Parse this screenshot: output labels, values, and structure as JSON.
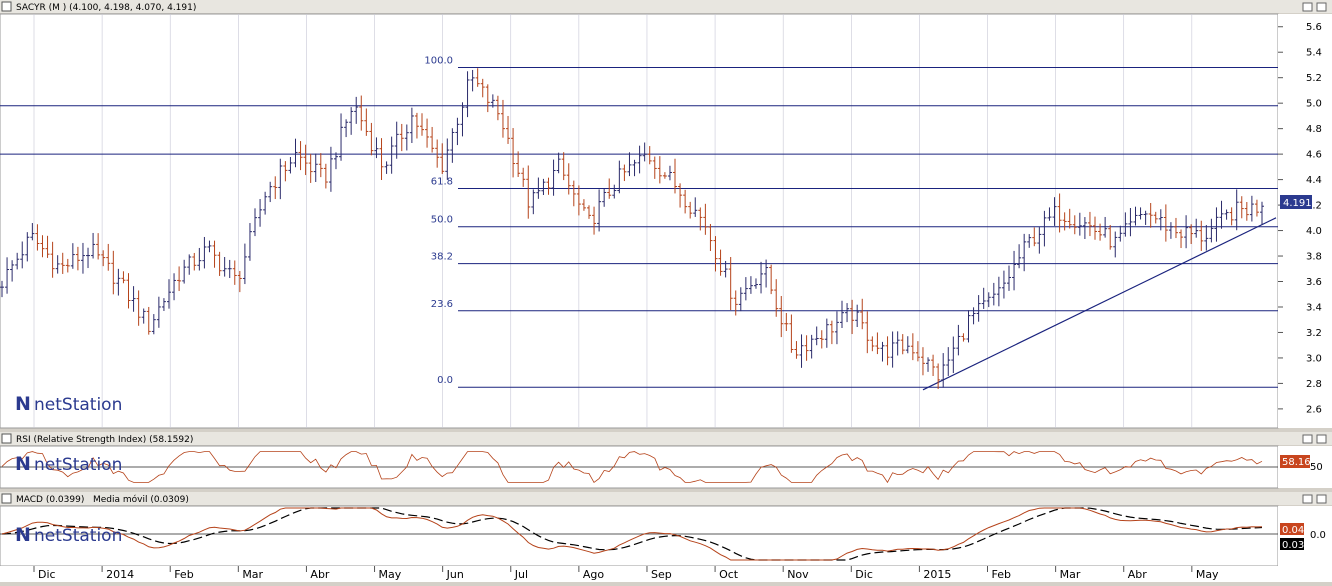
{
  "main_panel": {
    "title": "SACYR (M ) (4.100, 4.198, 4.070, 4.191)",
    "price_badge": "4.191",
    "logo": "netStation",
    "y_ticks": [
      "5.6",
      "5.4",
      "5.2",
      "5.0",
      "4.8",
      "4.6",
      "4.4",
      "4.2",
      "4.0",
      "3.8",
      "3.6",
      "3.4",
      "3.2",
      "3.0",
      "2.8",
      "2.6"
    ]
  },
  "rsi_panel": {
    "title": "RSI (Relative Strength Index) (58.1592)",
    "value_badge": "58.16",
    "y_tick": "50",
    "logo": "netStation"
  },
  "macd_panel": {
    "title_macd": "MACD (0.0399)",
    "title_signal": "Media móvil (0.0309)",
    "badge_macd": "0.04",
    "badge_signal": "0.03",
    "y_tick": "0.0",
    "logo": "netStation"
  },
  "x_axis_labels": [
    "Dic",
    "2014",
    "Feb",
    "Mar",
    "Abr",
    "May",
    "Jun",
    "Jul",
    "Ago",
    "Sep",
    "Oct",
    "Nov",
    "Dic",
    "2015",
    "Feb",
    "Mar",
    "Abr",
    "May"
  ],
  "window_buttons": [
    "minimize-icon",
    "restore-icon",
    "close-icon"
  ],
  "colors": {
    "up": "#2a2a6a",
    "down": "#b5431a",
    "grid": "#c7c7d6",
    "line": "#1a237e",
    "rsi": "#b5431a",
    "signal": "#000000",
    "badge": "#2b3a8f",
    "badge_red": "#c8451e"
  },
  "chart_data": [
    {
      "type": "line",
      "title": "SACYR (M ) (4.100, 4.198, 4.070, 4.191)",
      "ylim": [
        2.45,
        5.7
      ],
      "x_label_months": [
        "Dic",
        "2014",
        "Feb",
        "Mar",
        "Abr",
        "May",
        "Jun",
        "Jul",
        "Ago",
        "Sep",
        "Oct",
        "Nov",
        "Dic",
        "2015",
        "Feb",
        "Mar",
        "Abr",
        "May"
      ],
      "price_anchors": [
        3.6,
        3.95,
        3.7,
        3.85,
        3.6,
        3.25,
        3.65,
        3.85,
        3.6,
        4.3,
        4.6,
        4.4,
        5.0,
        4.5,
        4.9,
        4.5,
        5.2,
        4.9,
        4.2,
        4.5,
        4.05,
        4.4,
        4.6,
        4.35,
        4.05,
        3.45,
        3.7,
        3.05,
        3.2,
        3.35,
        3.05,
        3.1,
        2.85,
        3.3,
        3.5,
        3.9,
        4.15,
        4.05,
        3.9,
        4.15,
        4.0,
        3.95,
        4.15,
        4.19
      ],
      "fibonacci_levels": [
        {
          "label": "100.0",
          "price": 5.28
        },
        {
          "label": "61.8",
          "price": 4.33
        },
        {
          "label": "50.0",
          "price": 4.03
        },
        {
          "label": "38.2",
          "price": 3.74
        },
        {
          "label": "23.6",
          "price": 3.37
        },
        {
          "label": "0.0",
          "price": 2.77
        }
      ],
      "horizontal_lines": [
        4.98,
        4.6
      ],
      "trendline": [
        [
          2.77,
          "start"
        ],
        [
          4.08,
          "end"
        ]
      ],
      "last_price": 4.191
    },
    {
      "type": "line",
      "title": "RSI (Relative Strength Index) (58.1592)",
      "ylim": [
        20,
        80
      ],
      "reference_level": 50,
      "last_value": 58.16
    },
    {
      "type": "line",
      "series": [
        {
          "name": "MACD (0.0399)"
        },
        {
          "name": "Media móvil (0.0309)"
        }
      ],
      "reference_level": 0.0,
      "last_values": [
        0.04,
        0.03
      ]
    }
  ]
}
